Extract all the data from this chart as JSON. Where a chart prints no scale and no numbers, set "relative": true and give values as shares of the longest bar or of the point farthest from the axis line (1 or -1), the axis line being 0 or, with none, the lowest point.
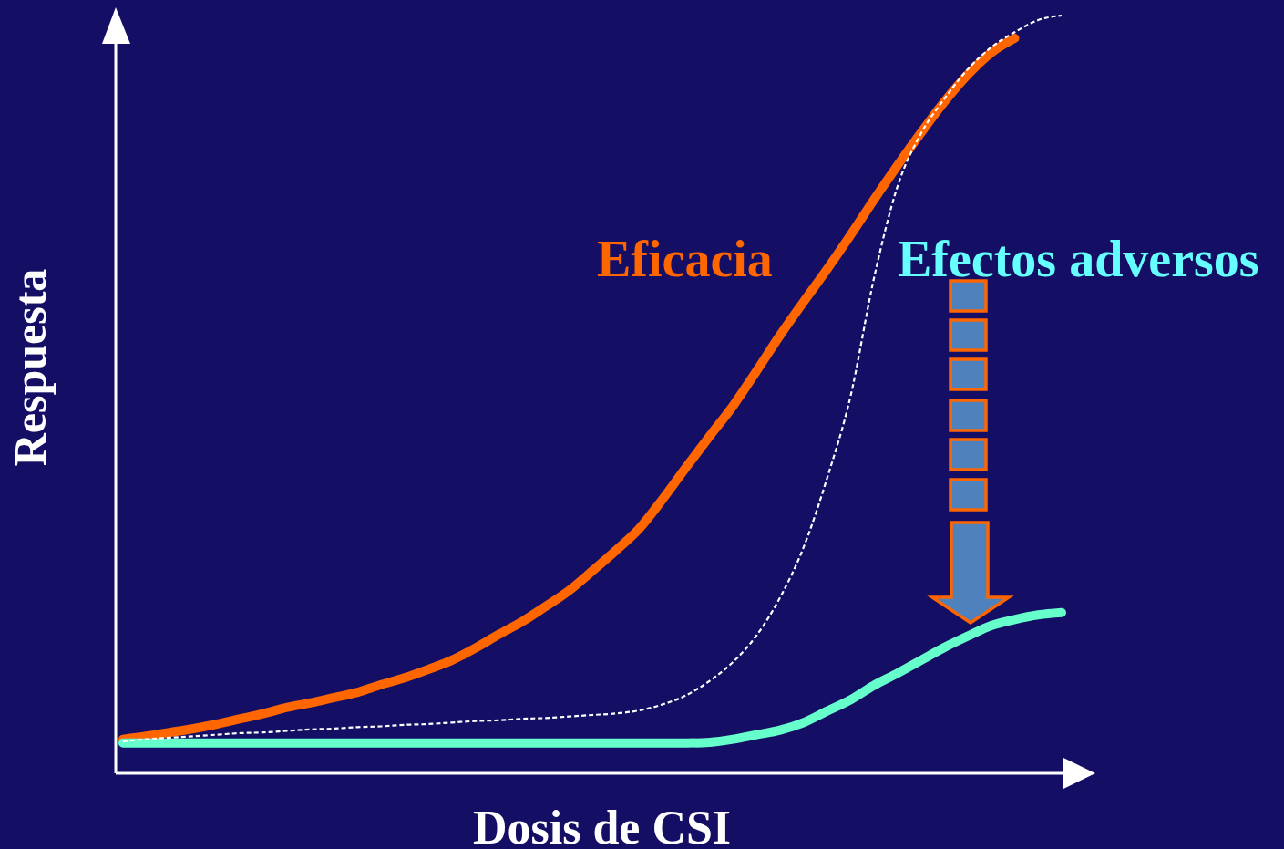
{
  "chart_data": {
    "type": "line",
    "xlabel": "Dosis de CSI",
    "ylabel": "Respuesta",
    "relative": true,
    "line_style": "solid",
    "categories": [
      null,
      null,
      null,
      null,
      null,
      null,
      null,
      null,
      null,
      null,
      null,
      null,
      null,
      null,
      null,
      null,
      null,
      null,
      null,
      null,
      null,
      null,
      null,
      null,
      null,
      null,
      null,
      null,
      null,
      null,
      null,
      null,
      null,
      null,
      null,
      null,
      null,
      null,
      null,
      null,
      null
    ],
    "series": [
      {
        "name": "Eficacia",
        "color": "#ff6600",
        "values": [
          0.045,
          0.049,
          0.054,
          0.059,
          0.065,
          0.072,
          0.079,
          0.087,
          0.093,
          0.1,
          0.107,
          0.117,
          0.126,
          0.137,
          0.149,
          0.165,
          0.183,
          0.2,
          0.22,
          0.241,
          0.267,
          0.294,
          0.323,
          0.362,
          0.404,
          0.445,
          0.485,
          0.531,
          0.578,
          0.622,
          0.665,
          0.71,
          0.757,
          0.802,
          0.845,
          0.886,
          0.922,
          0.951,
          0.97,
          null,
          null
        ]
      },
      {
        "color": "#66ffcc",
        "values": [
          0.04,
          0.04,
          0.04,
          0.04,
          0.04,
          0.04,
          0.04,
          0.04,
          0.04,
          0.04,
          0.04,
          0.04,
          0.04,
          0.04,
          0.04,
          0.04,
          0.04,
          0.04,
          0.04,
          0.04,
          0.04,
          0.04,
          0.04,
          0.04,
          0.04,
          0.041,
          0.045,
          0.051,
          0.057,
          0.067,
          0.082,
          0.097,
          0.116,
          0.132,
          0.149,
          0.166,
          0.181,
          0.195,
          0.203,
          0.209,
          0.212
        ]
      },
      {
        "color": "#ffffff",
        "line_style": "dashed",
        "values": [
          0.042,
          0.045,
          0.047,
          0.049,
          0.051,
          0.053,
          0.054,
          0.056,
          0.058,
          0.059,
          0.061,
          0.062,
          0.064,
          0.065,
          0.067,
          0.069,
          0.07,
          0.072,
          0.073,
          0.075,
          0.077,
          0.079,
          0.083,
          0.091,
          0.103,
          0.122,
          0.147,
          0.182,
          0.232,
          0.298,
          0.389,
          0.497,
          0.653,
          0.774,
          0.844,
          0.89,
          0.929,
          0.958,
          0.978,
          0.994,
          1
        ]
      }
    ],
    "annotations": [
      "Efectos adversos"
    ]
  }
}
